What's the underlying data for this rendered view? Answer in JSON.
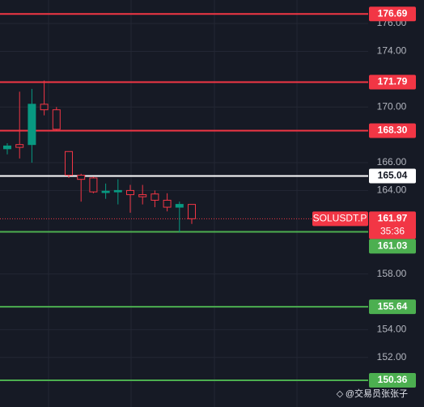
{
  "chart_data": {
    "type": "candlestick",
    "symbol": "SOLUSDT.P",
    "countdown": "35:36",
    "last_price": 161.97,
    "watermark": "@交易员张张子",
    "categories": [
      null,
      null,
      null,
      null,
      null,
      null,
      null,
      null,
      null,
      null,
      null,
      null,
      null,
      null,
      null,
      null
    ],
    "open": [
      167.0,
      167.3,
      167.3,
      170.2,
      169.8,
      166.8,
      165.1,
      164.9,
      163.85,
      163.9,
      164.0,
      163.7,
      163.75,
      163.3,
      162.8,
      163.0
    ],
    "high": [
      167.4,
      171.1,
      171.3,
      171.9,
      170.0,
      166.8,
      165.2,
      165.0,
      164.5,
      164.8,
      164.4,
      164.4,
      164.0,
      163.8,
      163.2,
      163.0
    ],
    "low": [
      166.6,
      166.3,
      166.0,
      169.4,
      168.3,
      164.9,
      163.2,
      163.8,
      163.4,
      163.0,
      162.4,
      163.0,
      162.8,
      162.5,
      161.0,
      161.6
    ],
    "close": [
      167.2,
      167.1,
      170.2,
      169.8,
      168.4,
      165.1,
      164.8,
      163.9,
      163.95,
      164.0,
      163.7,
      163.55,
      163.3,
      162.8,
      163.0,
      161.97
    ],
    "up_color": "#089981",
    "down_color": "#f23645",
    "ylim": [
      148.44,
      177.69
    ],
    "yticks": [
      {
        "value": 176,
        "label": "176.00"
      },
      {
        "value": 174,
        "label": "174.00"
      },
      {
        "value": 170,
        "label": "170.00"
      },
      {
        "value": 166,
        "label": "166.00"
      },
      {
        "value": 164,
        "label": "164.00"
      },
      {
        "value": 158,
        "label": "158.00"
      },
      {
        "value": 154,
        "label": "154.00"
      },
      {
        "value": 152,
        "label": "152.00"
      }
    ],
    "grid": true,
    "levels": {
      "values": [
        176.69,
        171.79,
        168.3,
        165.04,
        161.03,
        155.64,
        150.36
      ],
      "value_labels": [
        "176.69",
        "171.79",
        "168.30",
        "165.04",
        "161.03",
        "155.64",
        "150.36"
      ],
      "colors": [
        "#f23645",
        "#f23645",
        "#f23645",
        "#ffffff",
        "#4caf50",
        "#4caf50",
        "#4caf50"
      ]
    }
  }
}
